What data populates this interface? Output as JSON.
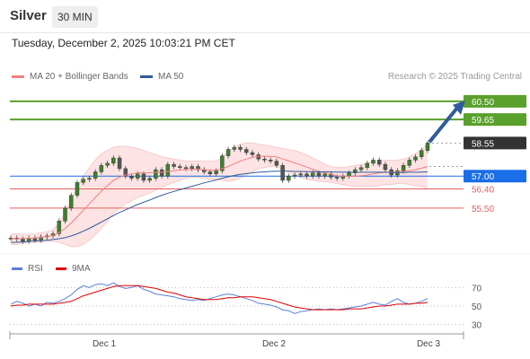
{
  "header": {
    "title": "Silver",
    "timeframe": "30 MIN"
  },
  "datetime": "Tuesday, December 2, 2025 10:03:21 PM CET",
  "legend": [
    {
      "label": "MA 20 + Bollinger Bands",
      "color": "#f08080"
    },
    {
      "label": "MA 50",
      "color": "#2f5b9c"
    }
  ],
  "rsi_legend": [
    {
      "label": "RSI",
      "color": "#5b7fd6"
    },
    {
      "label": "9MA",
      "color": "#e00000"
    }
  ],
  "credit": "Research © 2025 Trading Central",
  "colors": {
    "resistance": "#5aa02c",
    "support": "#1a6ee8",
    "support_line": "#e06060",
    "candle": "#555555",
    "arrow": "#2f5b9c"
  },
  "chart_data": [
    {
      "type": "candlestick",
      "title": "Silver 30 MIN",
      "x_labels": [
        "Dec 1",
        "Dec 2",
        "Dec 3"
      ],
      "ylim": [
        53.9,
        61.0
      ],
      "last_price": 58.55,
      "levels": [
        {
          "value": 60.5,
          "label": "60.50",
          "kind": "resistance"
        },
        {
          "value": 59.65,
          "label": "59.65",
          "kind": "resistance"
        },
        {
          "value": 58.55,
          "label": "58.55",
          "kind": "last"
        },
        {
          "value": 57.0,
          "label": "57.00",
          "kind": "pivot"
        },
        {
          "value": 56.4,
          "label": "56.40",
          "kind": "support"
        },
        {
          "value": 55.5,
          "label": "55.50",
          "kind": "support"
        }
      ],
      "price": [
        54.1,
        54.05,
        53.95,
        54.1,
        54.0,
        54.15,
        54.2,
        54.3,
        54.9,
        55.5,
        56.1,
        56.7,
        56.85,
        56.9,
        57.2,
        57.5,
        57.6,
        57.85,
        57.35,
        57.0,
        56.9,
        57.1,
        56.8,
        56.9,
        57.3,
        57.0,
        57.55,
        57.45,
        57.4,
        57.35,
        57.45,
        57.3,
        57.2,
        57.1,
        57.25,
        57.95,
        58.25,
        58.35,
        58.25,
        58.1,
        58.0,
        57.8,
        57.75,
        57.7,
        57.5,
        56.8,
        57.0,
        57.05,
        57.1,
        57.0,
        57.15,
        57.0,
        57.1,
        56.95,
        56.9,
        57.0,
        57.15,
        57.3,
        57.4,
        57.6,
        57.75,
        57.55,
        57.3,
        57.05,
        57.25,
        57.5,
        57.75,
        57.9,
        58.2,
        58.55
      ],
      "ma20": [
        54.05,
        54.07,
        54.08,
        54.09,
        54.1,
        54.13,
        54.17,
        54.22,
        54.35,
        54.55,
        54.8,
        55.1,
        55.4,
        55.7,
        56.0,
        56.3,
        56.55,
        56.8,
        56.95,
        57.05,
        57.1,
        57.15,
        57.15,
        57.15,
        57.18,
        57.18,
        57.22,
        57.25,
        57.28,
        57.3,
        57.32,
        57.33,
        57.3,
        57.28,
        57.27,
        57.35,
        57.45,
        57.58,
        57.7,
        57.8,
        57.88,
        57.92,
        57.93,
        57.92,
        57.9,
        57.8,
        57.72,
        57.62,
        57.52,
        57.42,
        57.32,
        57.22,
        57.15,
        57.08,
        57.02,
        57.0,
        56.99,
        57.0,
        57.02,
        57.05,
        57.1,
        57.15,
        57.18,
        57.18,
        57.2,
        57.22,
        57.25,
        57.3,
        57.37,
        57.45
      ],
      "bb_upper": [
        54.3,
        54.3,
        54.28,
        54.28,
        54.3,
        54.35,
        54.4,
        54.5,
        54.8,
        55.3,
        55.9,
        56.5,
        57.0,
        57.4,
        57.75,
        58.05,
        58.2,
        58.35,
        58.4,
        58.4,
        58.35,
        58.3,
        58.2,
        58.1,
        58.0,
        57.9,
        57.85,
        57.8,
        57.75,
        57.7,
        57.7,
        57.7,
        57.7,
        57.7,
        57.7,
        57.9,
        58.15,
        58.35,
        58.5,
        58.55,
        58.55,
        58.5,
        58.45,
        58.4,
        58.35,
        58.3,
        58.25,
        58.2,
        58.1,
        58.0,
        57.85,
        57.7,
        57.55,
        57.45,
        57.4,
        57.4,
        57.45,
        57.5,
        57.55,
        57.6,
        57.7,
        57.75,
        57.75,
        57.75,
        57.75,
        57.8,
        57.9,
        58.05,
        58.25,
        58.5
      ],
      "bb_lower": [
        53.8,
        53.8,
        53.85,
        53.9,
        53.9,
        53.9,
        53.95,
        53.95,
        53.9,
        53.8,
        53.7,
        53.7,
        53.8,
        54.0,
        54.25,
        54.55,
        54.9,
        55.25,
        55.5,
        55.7,
        55.85,
        56.0,
        56.1,
        56.2,
        56.35,
        56.45,
        56.6,
        56.7,
        56.8,
        56.9,
        56.95,
        56.95,
        56.9,
        56.85,
        56.85,
        56.8,
        56.75,
        56.8,
        56.9,
        57.05,
        57.2,
        57.35,
        57.4,
        57.45,
        57.45,
        57.3,
        57.2,
        57.05,
        56.95,
        56.85,
        56.8,
        56.75,
        56.75,
        56.7,
        56.65,
        56.6,
        56.55,
        56.5,
        56.5,
        56.5,
        56.5,
        56.55,
        56.6,
        56.6,
        56.65,
        56.65,
        56.6,
        56.55,
        56.5,
        56.4
      ],
      "ma50": [
        53.9,
        53.9,
        53.92,
        53.94,
        53.96,
        53.98,
        54.0,
        54.03,
        54.07,
        54.12,
        54.2,
        54.3,
        54.42,
        54.55,
        54.7,
        54.85,
        55.0,
        55.15,
        55.3,
        55.42,
        55.55,
        55.67,
        55.78,
        55.88,
        56.0,
        56.1,
        56.2,
        56.28,
        56.36,
        56.44,
        56.52,
        56.6,
        56.68,
        56.75,
        56.82,
        56.9,
        56.97,
        57.03,
        57.08,
        57.12,
        57.15,
        57.18,
        57.2,
        57.22,
        57.23,
        57.23,
        57.23,
        57.22,
        57.22,
        57.21,
        57.21,
        57.2,
        57.2,
        57.2,
        57.19,
        57.19,
        57.18,
        57.18,
        57.18,
        57.18,
        57.18,
        57.18,
        57.18,
        57.17,
        57.17,
        57.17,
        57.18,
        57.18,
        57.19,
        57.2
      ]
    },
    {
      "type": "line",
      "title": "RSI",
      "series_names": [
        "RSI",
        "9MA"
      ],
      "ylim": [
        20,
        80
      ],
      "yticks": [
        70,
        50,
        30
      ],
      "rsi": [
        52,
        55,
        53,
        50,
        52,
        50,
        54,
        53,
        55,
        58,
        62,
        68,
        72,
        70,
        73,
        74,
        72,
        75,
        71,
        69,
        70,
        72,
        68,
        66,
        63,
        62,
        61,
        60,
        58,
        57,
        56,
        57,
        56,
        58,
        60,
        62,
        63,
        62,
        60,
        58,
        56,
        53,
        52,
        51,
        49,
        46,
        45,
        42,
        44,
        45,
        46,
        47,
        46,
        47,
        46,
        47,
        48,
        49,
        50,
        52,
        54,
        52,
        51,
        55,
        58,
        54,
        52,
        53,
        55,
        58
      ],
      "ma9": [
        50,
        51,
        51,
        52,
        52,
        52,
        52,
        52,
        53,
        54,
        55,
        58,
        61,
        63,
        65,
        67,
        69,
        71,
        72,
        72,
        72,
        72,
        71,
        70,
        69,
        67,
        65,
        64,
        62,
        60,
        59,
        58,
        57,
        57,
        57,
        58,
        59,
        59,
        60,
        60,
        60,
        59,
        58,
        57,
        55,
        53,
        51,
        49,
        48,
        47,
        46,
        46,
        46,
        46,
        46,
        46,
        47,
        47,
        47,
        48,
        49,
        50,
        50,
        51,
        52,
        52,
        52,
        53,
        53,
        54
      ]
    }
  ]
}
